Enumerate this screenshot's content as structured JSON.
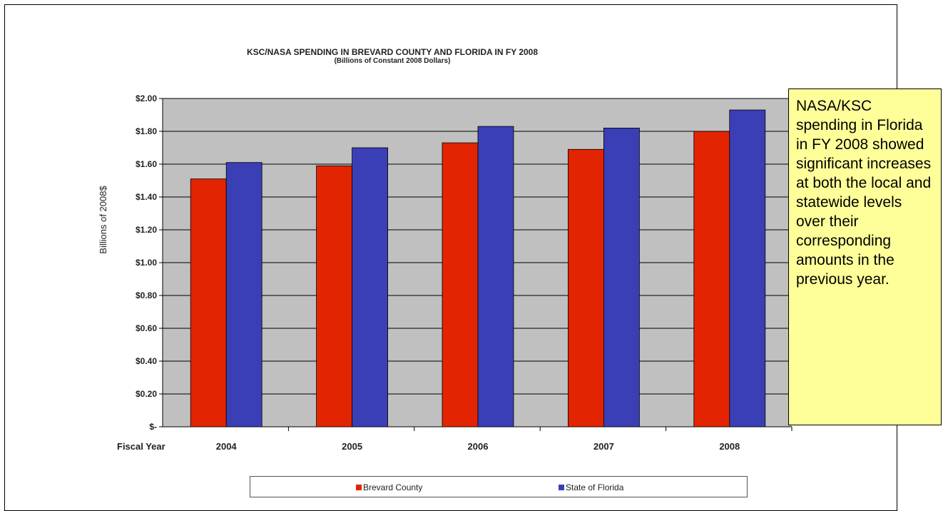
{
  "chart_data": {
    "type": "bar",
    "title": "KSC/NASA SPENDING IN BREVARD COUNTY AND FLORIDA IN FY 2008",
    "subtitle": "(Billions of Constant 2008 Dollars)",
    "xlabel": "Fiscal Year",
    "ylabel": "Billions of 2008$",
    "ylim": [
      0,
      2.0
    ],
    "yticks": [
      "$-",
      "$0.20",
      "$0.40",
      "$0.60",
      "$0.80",
      "$1.00",
      "$1.20",
      "$1.40",
      "$1.60",
      "$1.80",
      "$2.00"
    ],
    "categories": [
      "2004",
      "2005",
      "2006",
      "2007",
      "2008"
    ],
    "series": [
      {
        "name": "Brevard  County",
        "color": "#e32400",
        "values": [
          1.51,
          1.59,
          1.73,
          1.69,
          1.8
        ]
      },
      {
        "name": "State of Florida",
        "color": "#3b3fb5",
        "values": [
          1.61,
          1.7,
          1.83,
          1.82,
          1.93
        ]
      }
    ],
    "grid": true,
    "plot_background": "#c0c0c0",
    "legend_position": "bottom"
  },
  "annotation": {
    "text": "NASA/KSC spending in Florida in FY 2008 showed significant increases at both the local and statewide levels over their corresponding amounts in the previous year.",
    "background": "#ffff99"
  }
}
